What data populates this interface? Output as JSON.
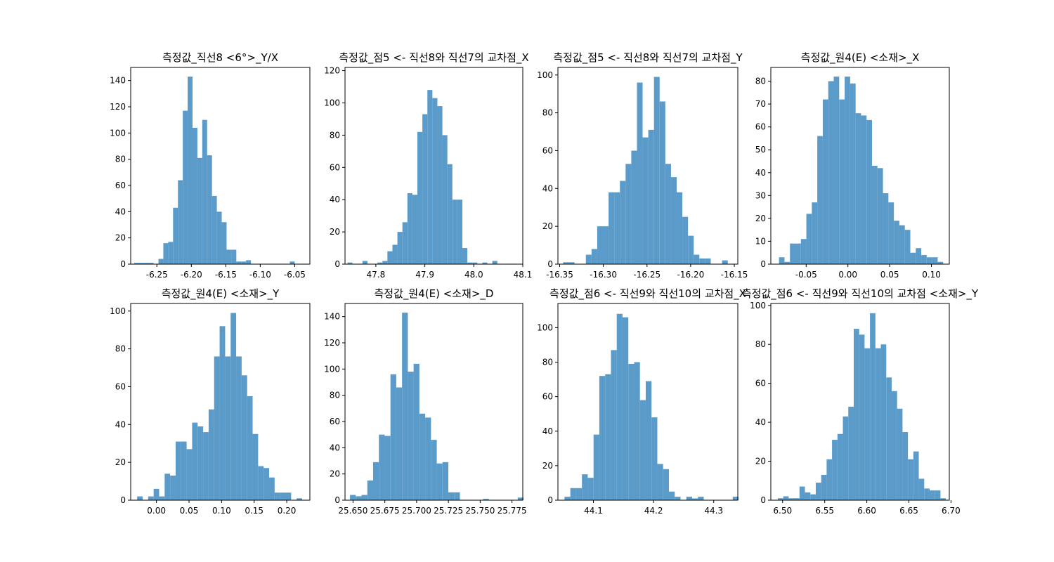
{
  "figure": {
    "bar_color": "#5b9bc9"
  },
  "chart_data": [
    {
      "type": "bar",
      "title": "측정값_직선8 <6°>_Y/X",
      "bins": [
        -6.283,
        -6.278,
        -6.273,
        -6.268,
        -6.263,
        -6.258,
        -6.253,
        -6.248,
        -6.243,
        -6.238,
        -6.233,
        -6.228,
        -6.223,
        -6.218,
        -6.213,
        -6.208,
        -6.203,
        -6.198,
        -6.193,
        -6.188,
        -6.183,
        -6.178,
        -6.173,
        -6.168,
        -6.163,
        -6.158,
        -6.153,
        -6.148,
        -6.143,
        -6.138,
        -6.133,
        -6.128,
        -6.123,
        -6.118,
        -6.113,
        -6.108,
        -6.103,
        -6.098,
        -6.093,
        -6.088,
        -6.083,
        -6.078,
        -6.073,
        -6.068,
        -6.063,
        -6.058,
        -6.053,
        -6.048,
        -6.043,
        -6.038,
        -6.033
      ],
      "counts": [
        1,
        0,
        0,
        0,
        0,
        0,
        0,
        0,
        0,
        0,
        0,
        0,
        0,
        0,
        0,
        0,
        0,
        0,
        0,
        0,
        0,
        0,
        0,
        0,
        0,
        0,
        0,
        0,
        0,
        0,
        0,
        0,
        0,
        0,
        0,
        0,
        0,
        0,
        0,
        0,
        0,
        0,
        0,
        0,
        0,
        0,
        0,
        0,
        0,
        0
      ],
      "hist": {
        "edges_start": -6.283,
        "bin_width": 0.00706,
        "counts": [
          1,
          1,
          1,
          1,
          0,
          4,
          16,
          17,
          43,
          64,
          117,
          143,
          104,
          81,
          110,
          83,
          52,
          40,
          32,
          11,
          11,
          2,
          2,
          3,
          0,
          0,
          0,
          0,
          0,
          0,
          0,
          0,
          2
        ]
      },
      "xlim": [
        -6.288,
        -6.028
      ],
      "ylim": [
        0,
        150
      ],
      "xticks": [
        -6.25,
        -6.2,
        -6.15,
        -6.1,
        -6.05
      ],
      "xtick_labels": [
        "-6.25",
        "-6.20",
        "-6.15",
        "-6.10",
        "-6.05"
      ],
      "yticks": [
        0,
        20,
        40,
        60,
        80,
        100,
        120,
        140
      ],
      "ytick_labels": [
        "0",
        "20",
        "40",
        "60",
        "80",
        "100",
        "120",
        "140"
      ]
    },
    {
      "type": "bar",
      "title": "측정값_점5 <- 직선8와 직선7의 교차점_X",
      "hist": {
        "edges_start": 47.742,
        "bin_width": 0.0102,
        "counts": [
          1,
          0,
          0,
          2,
          0,
          0,
          1,
          2,
          8,
          12,
          20,
          26,
          44,
          43,
          82,
          93,
          108,
          103,
          98,
          80,
          62,
          40,
          40,
          10,
          1,
          1,
          0,
          1,
          0,
          2
        ]
      },
      "xlim": [
        47.737,
        48.1
      ],
      "ylim": [
        0,
        122
      ],
      "xticks": [
        47.8,
        47.9,
        48.0,
        48.1
      ],
      "xtick_labels": [
        "47.8",
        "47.9",
        "48.0",
        "48.1"
      ],
      "yticks": [
        0,
        20,
        40,
        60,
        80,
        100,
        120
      ],
      "ytick_labels": [
        "0",
        "20",
        "40",
        "60",
        "80",
        "100",
        "120"
      ]
    },
    {
      "type": "bar",
      "title": "측정값_점5 <- 직선8와 직선7의 교차점_Y",
      "hist": {
        "edges_start": -16.346,
        "bin_width": 0.0065,
        "counts": [
          1,
          1,
          0,
          0,
          5,
          8,
          20,
          20,
          38,
          38,
          44,
          53,
          60,
          96,
          67,
          71,
          99,
          86,
          53,
          46,
          38,
          25,
          15,
          5,
          3,
          3,
          0,
          0,
          2
        ]
      },
      "xlim": [
        -16.352,
        -16.146
      ],
      "ylim": [
        0,
        104
      ],
      "xticks": [
        -16.35,
        -16.3,
        -16.25,
        -16.2,
        -16.15
      ],
      "xtick_labels": [
        "-16.35",
        "-16.30",
        "-16.25",
        "-16.20",
        "-16.15"
      ],
      "yticks": [
        0,
        20,
        40,
        60,
        80,
        100
      ],
      "ytick_labels": [
        "0",
        "20",
        "40",
        "60",
        "80",
        "100"
      ]
    },
    {
      "type": "bar",
      "title": "측정값_원4(E) <소재>_X",
      "hist": {
        "edges_start": -0.0825,
        "bin_width": 0.00655,
        "counts": [
          3,
          1,
          9,
          9,
          11,
          22,
          27,
          56,
          72,
          80,
          82,
          72,
          82,
          79,
          66,
          65,
          63,
          43,
          42,
          31,
          27,
          19,
          17,
          15,
          5,
          7,
          4,
          3,
          3,
          1
        ]
      },
      "xlim": [
        -0.0923,
        0.1214
      ],
      "ylim": [
        0,
        86
      ],
      "xticks": [
        -0.05,
        0.0,
        0.05,
        0.1
      ],
      "xtick_labels": [
        "-0.05",
        "0.00",
        "0.05",
        "0.10"
      ],
      "yticks": [
        0,
        10,
        20,
        30,
        40,
        50,
        60,
        70,
        80
      ],
      "ytick_labels": [
        "0",
        "10",
        "20",
        "30",
        "40",
        "50",
        "60",
        "70",
        "80"
      ]
    },
    {
      "type": "bar",
      "title": "측정값_원4(E) <소재>_Y",
      "hist": {
        "edges_start": -0.0296,
        "bin_width": 0.00844,
        "counts": [
          2,
          0,
          2,
          6,
          2,
          14,
          13,
          31,
          31,
          27,
          41,
          39,
          36,
          48,
          76,
          92,
          76,
          99,
          76,
          66,
          55,
          35,
          18,
          17,
          12,
          4,
          4,
          4,
          0,
          1
        ]
      },
      "xlim": [
        -0.0395,
        0.2355
      ],
      "ylim": [
        0,
        104
      ],
      "xticks": [
        0.0,
        0.05,
        0.1,
        0.15,
        0.2
      ],
      "xtick_labels": [
        "0.00",
        "0.05",
        "0.10",
        "0.15",
        "0.20"
      ],
      "yticks": [
        0,
        20,
        40,
        60,
        80,
        100
      ],
      "ytick_labels": [
        "0",
        "20",
        "40",
        "60",
        "80",
        "100"
      ]
    },
    {
      "type": "bar",
      "title": "측정값_원4(E) <소재>_D",
      "hist": {
        "edges_start": 25.6476,
        "bin_width": 0.00455,
        "counts": [
          4,
          3,
          4,
          15,
          29,
          50,
          49,
          96,
          86,
          143,
          98,
          104,
          66,
          63,
          46,
          28,
          29,
          6,
          6,
          0,
          0,
          0,
          0,
          1,
          0,
          0,
          0,
          0,
          0,
          2
        ]
      },
      "xlim": [
        25.6437,
        25.7835
      ],
      "ylim": [
        0,
        150
      ],
      "xticks": [
        25.65,
        25.675,
        25.7,
        25.725,
        25.75,
        25.775
      ],
      "xtick_labels": [
        "25.650",
        "25.675",
        "25.700",
        "25.725",
        "25.750",
        "25.775"
      ],
      "yticks": [
        0,
        20,
        40,
        60,
        80,
        100,
        120,
        140
      ],
      "ytick_labels": [
        "0",
        "20",
        "40",
        "60",
        "80",
        "100",
        "120",
        "140"
      ]
    },
    {
      "type": "bar",
      "title": "측정값_점6 <- 직선9와 직선10의 교차점_X",
      "hist": {
        "edges_start": 44.052,
        "bin_width": 0.00964,
        "counts": [
          2,
          7,
          7,
          15,
          13,
          38,
          72,
          73,
          87,
          108,
          106,
          79,
          80,
          58,
          69,
          48,
          21,
          18,
          5,
          2,
          0,
          2,
          1,
          2,
          0,
          0,
          0,
          0,
          0,
          2
        ]
      },
      "xlim": [
        44.041,
        44.34
      ],
      "ylim": [
        0,
        114
      ],
      "xticks": [
        44.1,
        44.2,
        44.3
      ],
      "xtick_labels": [
        "44.1",
        "44.2",
        "44.3"
      ],
      "yticks": [
        0,
        20,
        40,
        60,
        80,
        100
      ],
      "ytick_labels": [
        "0",
        "20",
        "40",
        "60",
        "80",
        "100"
      ]
    },
    {
      "type": "bar",
      "title": "측정값_점6 <- 직선9와 직선10의 교차점 <소재>_Y",
      "hist": {
        "edges_start": 6.4943,
        "bin_width": 0.00644,
        "counts": [
          1,
          2,
          1,
          1,
          7,
          4,
          3,
          9,
          13,
          21,
          31,
          34,
          43,
          48,
          88,
          85,
          78,
          96,
          78,
          80,
          63,
          56,
          47,
          35,
          21,
          25,
          11,
          6,
          5,
          5,
          1
        ]
      },
      "xlim": [
        6.486,
        6.698
      ],
      "ylim": [
        0,
        101
      ],
      "xticks": [
        6.5,
        6.55,
        6.6,
        6.65,
        6.7
      ],
      "xtick_labels": [
        "6.50",
        "6.55",
        "6.60",
        "6.65",
        "6.70"
      ],
      "yticks": [
        0,
        20,
        40,
        60,
        80,
        100
      ],
      "ytick_labels": [
        "0",
        "20",
        "40",
        "60",
        "80",
        "100"
      ]
    }
  ]
}
